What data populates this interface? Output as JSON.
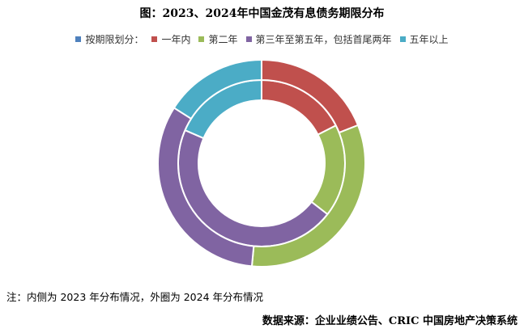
{
  "chart_data": {
    "type": "pie",
    "title": "图：2023、2024年中国金茂有息债务期限分布",
    "legend_title": "按期限划分：",
    "categories": [
      "一年内",
      "第二年",
      "第三年至第五年，包括首尾两年",
      "五年以上"
    ],
    "colors": [
      "#C0504D",
      "#9BBB59",
      "#8064A2",
      "#4BACC6"
    ],
    "legend_marker_color": "#4F81BD",
    "legend_position": "top",
    "series": [
      {
        "values": [
          17.5,
          18,
          46,
          18.5
        ]
      },
      {
        "values": [
          19,
          32.5,
          32.5,
          16
        ]
      }
    ]
  },
  "note": "注：内侧为 2023 年分布情况，外圈为 2024 年分布情况",
  "source": "数据来源：企业业绩公告、CRIC 中国房地产决策系统"
}
